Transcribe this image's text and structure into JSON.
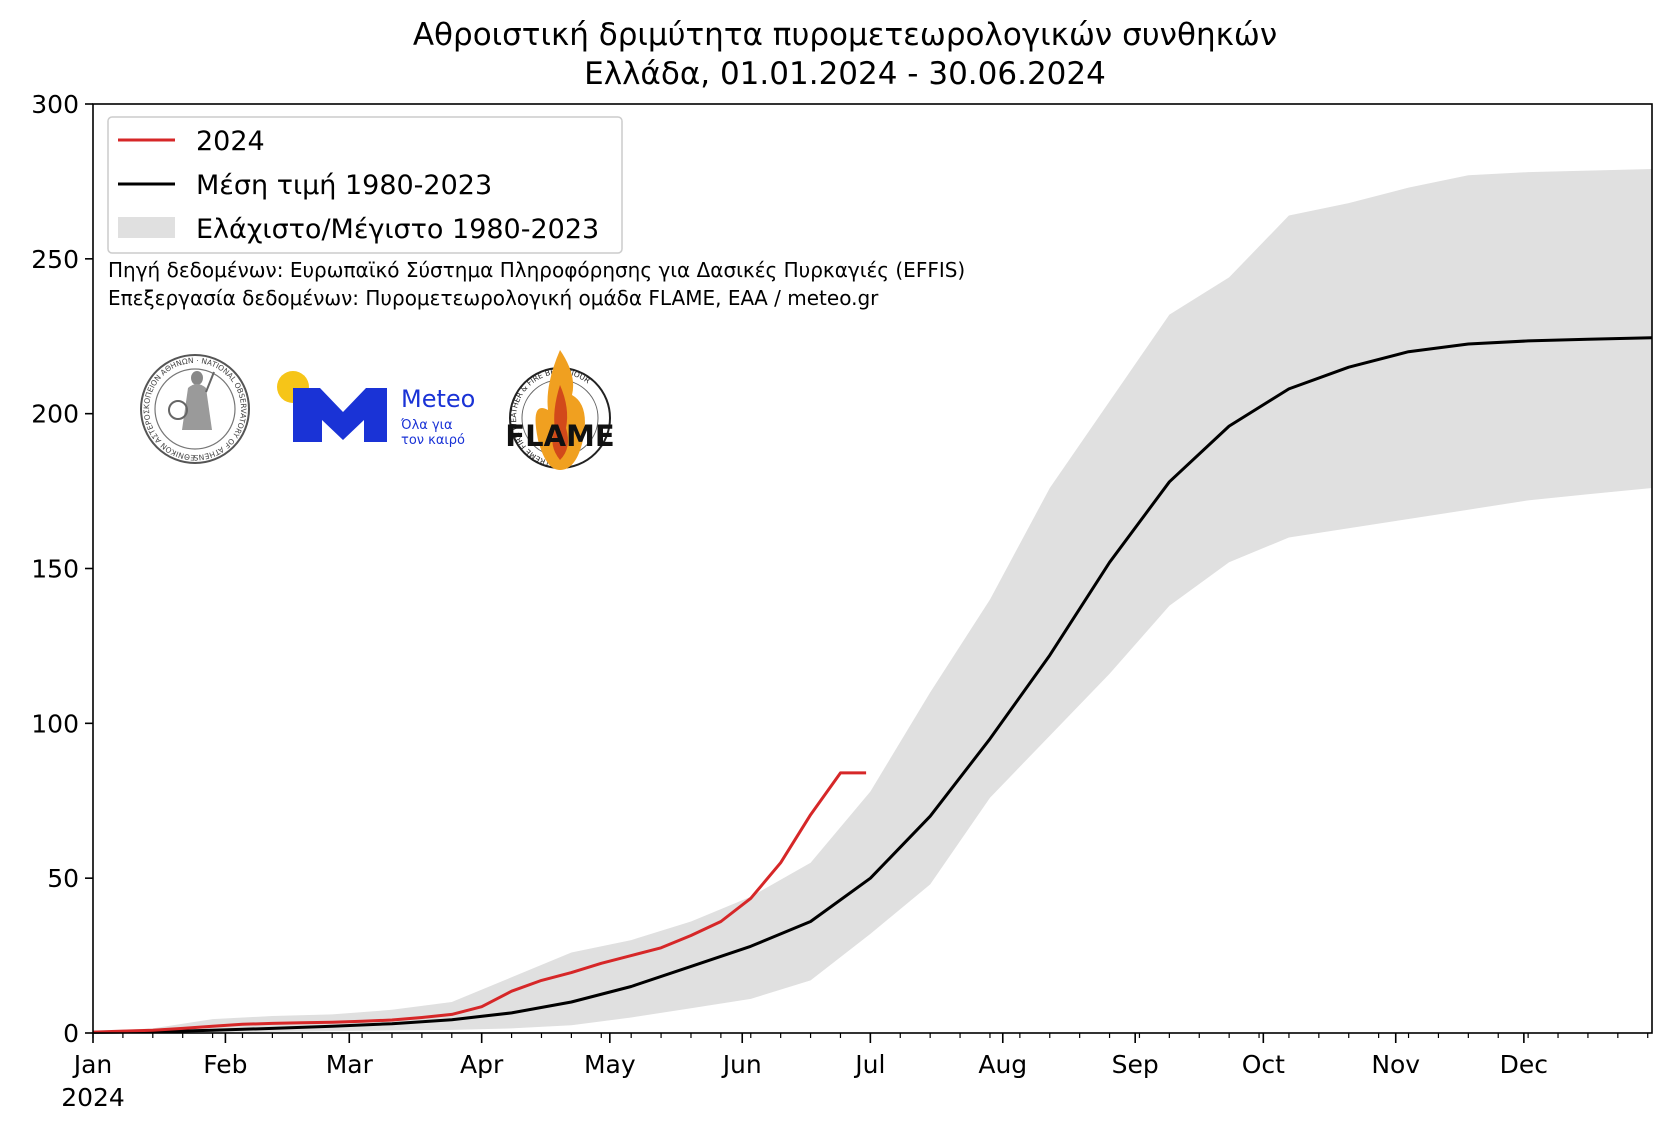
{
  "chart_data": {
    "type": "line",
    "title": "Αθροιστική δριμύτητα πυρομετεωρολογικών συνθηκών",
    "subtitle": "Ελλάδα, 01.01.2024 - 30.06.2024",
    "xlabel": "",
    "ylabel": "",
    "xlim_day_of_year": [
      1,
      366
    ],
    "ylim": [
      0,
      300
    ],
    "yticks": [
      0,
      50,
      100,
      150,
      200,
      250,
      300
    ],
    "ytick_labels": [
      "0",
      "50",
      "100",
      "150",
      "200",
      "250",
      "300"
    ],
    "months": [
      {
        "label": "Jan",
        "day": 1
      },
      {
        "label": "Feb",
        "day": 32
      },
      {
        "label": "Mar",
        "day": 61
      },
      {
        "label": "Apr",
        "day": 92
      },
      {
        "label": "May",
        "day": 122
      },
      {
        "label": "Jun",
        "day": 153
      },
      {
        "label": "Jul",
        "day": 183
      },
      {
        "label": "Aug",
        "day": 214
      },
      {
        "label": "Sep",
        "day": 245
      },
      {
        "label": "Oct",
        "day": 275
      },
      {
        "label": "Nov",
        "day": 306
      },
      {
        "label": "Dec",
        "day": 336
      }
    ],
    "year_label": "2024",
    "grid": false,
    "legend_position": "top-left",
    "series": [
      {
        "name": "2024",
        "color": "#d62728",
        "kind": "line",
        "x": [
          1,
          8,
          15,
          22,
          29,
          36,
          43,
          50,
          57,
          64,
          71,
          78,
          85,
          92,
          99,
          106,
          113,
          120,
          127,
          134,
          141,
          148,
          155,
          162,
          169,
          176,
          182
        ],
        "y": [
          0.3,
          0.6,
          0.9,
          1.5,
          2.2,
          2.8,
          3.1,
          3.3,
          3.5,
          3.8,
          4.2,
          5.0,
          6.0,
          8.5,
          13.5,
          17.0,
          19.5,
          22.5,
          25.0,
          27.5,
          31.5,
          36.0,
          43.5,
          55.0,
          70.5,
          84.0,
          84.0
        ]
      },
      {
        "name": "Μέση τιμή 1980-2023",
        "color": "#000000",
        "kind": "line",
        "x": [
          1,
          15,
          29,
          43,
          57,
          71,
          85,
          99,
          113,
          127,
          141,
          155,
          169,
          183,
          197,
          211,
          225,
          239,
          253,
          267,
          281,
          295,
          309,
          323,
          337,
          351,
          366
        ],
        "y": [
          0.2,
          0.4,
          0.9,
          1.5,
          2.2,
          3.0,
          4.3,
          6.5,
          10.0,
          15.0,
          21.5,
          28.0,
          36.0,
          50.0,
          70.0,
          95.0,
          122.0,
          152.0,
          178.0,
          196.0,
          208.0,
          215.0,
          220.0,
          222.5,
          223.5,
          224.0,
          224.5
        ]
      },
      {
        "name": "Ελάχιστο/Μέγιστο 1980-2023",
        "color": "#e0e0e0",
        "kind": "band",
        "x": [
          1,
          15,
          29,
          43,
          57,
          71,
          85,
          99,
          113,
          127,
          141,
          155,
          169,
          183,
          197,
          211,
          225,
          239,
          253,
          267,
          281,
          295,
          309,
          323,
          337,
          351,
          366
        ],
        "lower": [
          0.0,
          0.1,
          0.2,
          0.4,
          0.6,
          0.8,
          1.0,
          1.5,
          2.5,
          5.0,
          8.0,
          11.0,
          17.0,
          32.0,
          48.0,
          76.0,
          96.0,
          116.0,
          138.0,
          152.0,
          160.0,
          163.0,
          166.0,
          169.0,
          172.0,
          174.0,
          176.0
        ],
        "upper": [
          0.5,
          1.5,
          4.5,
          5.5,
          6.0,
          7.5,
          10.0,
          18.0,
          26.0,
          30.0,
          36.0,
          44.0,
          55.0,
          78.0,
          110.0,
          140.0,
          176.0,
          204.0,
          232.0,
          244.0,
          264.0,
          268.0,
          273.0,
          277.0,
          278.0,
          278.5,
          279.0
        ]
      }
    ],
    "legend_entries": [
      "2024",
      "Μέση τιμή 1980-2023",
      "Ελάχιστο/Μέγιστο 1980-2023"
    ],
    "annotations": [
      "Πηγή δεδομένων: Ευρωπαϊκό Σύστημα Πληροφόρησης για Δασικές Πυρκαγιές (EFFIS)",
      "Επεξεργασία δεδομένων: Πυρομετεωρολογική ομάδα FLAME, ΕΑΑ / meteo.gr"
    ]
  },
  "logos": {
    "meteo_name": "Meteo",
    "meteo_tagline_1": "Όλα για",
    "meteo_tagline_2": "τον καιρό",
    "meteo_brand_color": "#1a33d6",
    "meteo_sun_color": "#f6c518",
    "flame_name": "FLAME",
    "flame_ring_text": "EXTREME FIRE WEATHER & FIRE BEHAVIOUR",
    "noa_ring_text": "ΕΘΝΙΚΟΝ ΑΣΤΕΡΟΣΚΟΠΕΙΟΝ ΑΘΗΝΩΝ · NATIONAL OBSERVATORY OF ATHENS"
  }
}
